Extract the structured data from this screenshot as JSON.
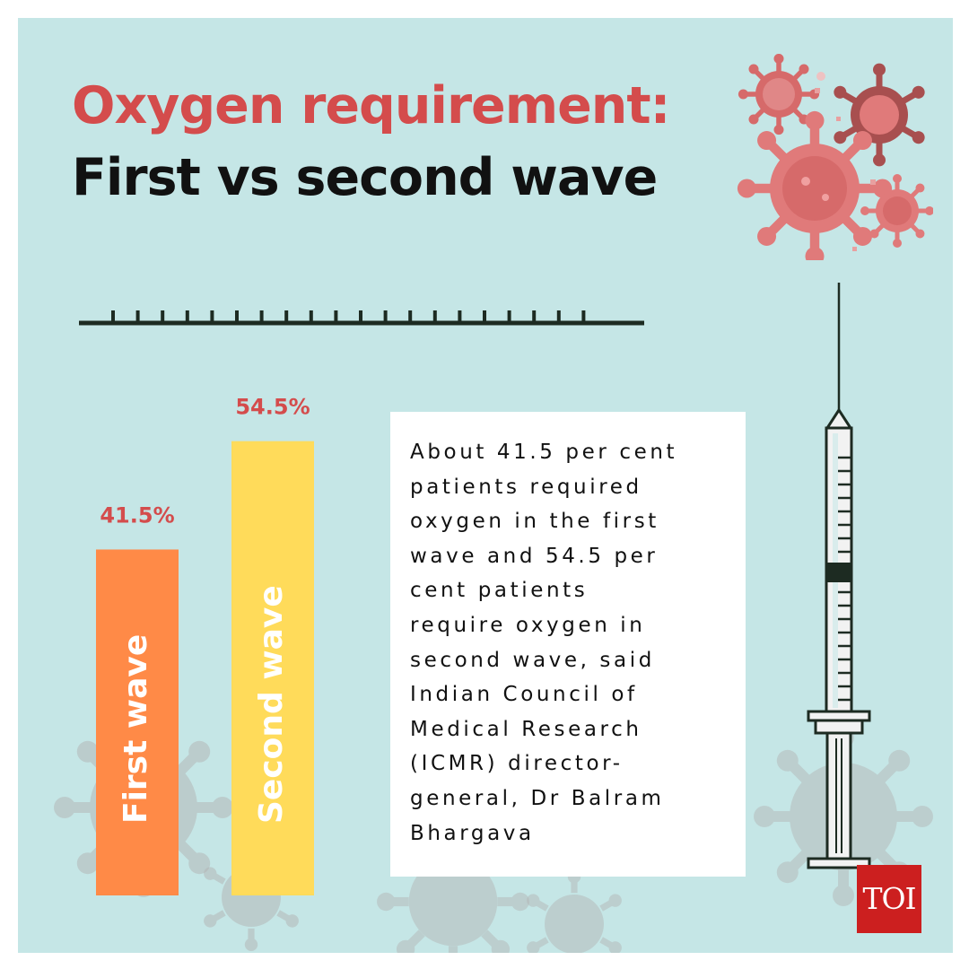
{
  "title": {
    "part1": "Oxygen requirement:",
    "part2": "First vs second wave"
  },
  "chart_data": {
    "type": "bar",
    "categories": [
      "First wave",
      "Second wave"
    ],
    "values": [
      41.5,
      54.5
    ],
    "value_labels": [
      "41.5%",
      "54.5%"
    ],
    "ylim": [
      0,
      100
    ],
    "colors": [
      "#ff8a47",
      "#ffdb5a"
    ],
    "title": "Oxygen requirement: First vs second wave"
  },
  "description": "About 41.5 per cent\npatients required\noxygen in the first\nwave and  54.5 per\ncent patients\nrequire oxygen in\nsecond wave, said\nIndian Council of\nMedical Research\n(ICMR) director-\ngeneral, Dr Balram\nBhargava",
  "logo": "TOI",
  "icons": [
    "virus-icon",
    "syringe-icon"
  ],
  "colors": {
    "background": "#c5e6e6",
    "accent_red": "#d44c4c",
    "text_dark": "#111111"
  }
}
